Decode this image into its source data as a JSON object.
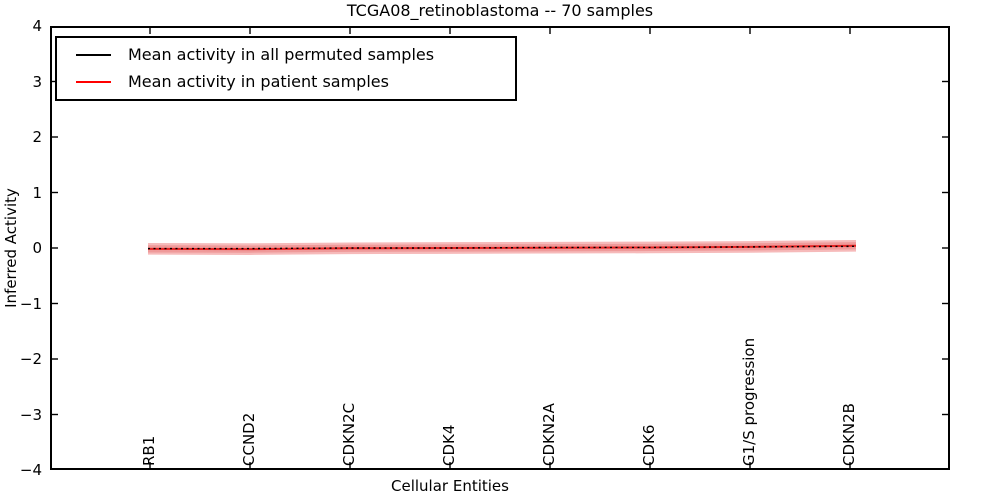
{
  "title": "TCGA08_retinoblastoma -- 70 samples",
  "axes": {
    "ylabel": "Inferred Activity",
    "xlabel": "Cellular Entities",
    "ytick_labels": [
      "4",
      "3",
      "2",
      "1",
      "0",
      "−1",
      "−2",
      "−3",
      "−4"
    ]
  },
  "legend": {
    "items": [
      {
        "label": "Mean activity in all permuted samples",
        "color": "#000000"
      },
      {
        "label": "Mean activity in patient samples",
        "color": "#ff0000"
      }
    ]
  },
  "chart_data": {
    "type": "line",
    "title": "TCGA08_retinoblastoma -- 70 samples",
    "xlabel": "Cellular Entities",
    "ylabel": "Inferred Activity",
    "xlim": [
      0,
      9
    ],
    "ylim": [
      -4,
      4
    ],
    "grid": false,
    "legend_position": "upper left",
    "yticks": [
      4,
      3,
      2,
      1,
      0,
      -1,
      -2,
      -3,
      -4
    ],
    "categories": [
      "RB1",
      "CCND2",
      "CDKN2C",
      "CDK4",
      "CDKN2A",
      "CDK6",
      "G1/S progression",
      "CDKN2B"
    ],
    "category_x": [
      1,
      2,
      3,
      4,
      5,
      6,
      7,
      8
    ],
    "x": [
      0.98,
      2,
      3,
      4,
      5,
      6,
      7,
      8.06
    ],
    "series": [
      {
        "name": "Mean activity in all permuted samples",
        "color": "#000000",
        "line_style": "dotted",
        "values": [
          -0.01,
          -0.01,
          0.0,
          0.0,
          0.01,
          0.01,
          0.02,
          0.03
        ]
      },
      {
        "name": "Mean activity in patient samples",
        "color": "#e62222",
        "line_style": "solid",
        "values": [
          -0.015,
          -0.02,
          -0.005,
          0.0,
          0.005,
          0.01,
          0.02,
          0.04
        ]
      }
    ],
    "bands": [
      {
        "name": "patient-mean-std-outer",
        "color": "#f6baba",
        "upper": [
          0.09,
          0.085,
          0.1,
          0.105,
          0.11,
          0.115,
          0.125,
          0.145
        ],
        "lower": [
          -0.12,
          -0.125,
          -0.11,
          -0.105,
          -0.1,
          -0.095,
          -0.085,
          -0.065
        ]
      },
      {
        "name": "patient-mean-std-inner",
        "color": "#ef9a9a",
        "upper": [
          0.05,
          0.045,
          0.06,
          0.065,
          0.07,
          0.075,
          0.085,
          0.105
        ],
        "lower": [
          -0.08,
          -0.085,
          -0.07,
          -0.065,
          -0.06,
          -0.055,
          -0.045,
          -0.025
        ]
      }
    ]
  }
}
